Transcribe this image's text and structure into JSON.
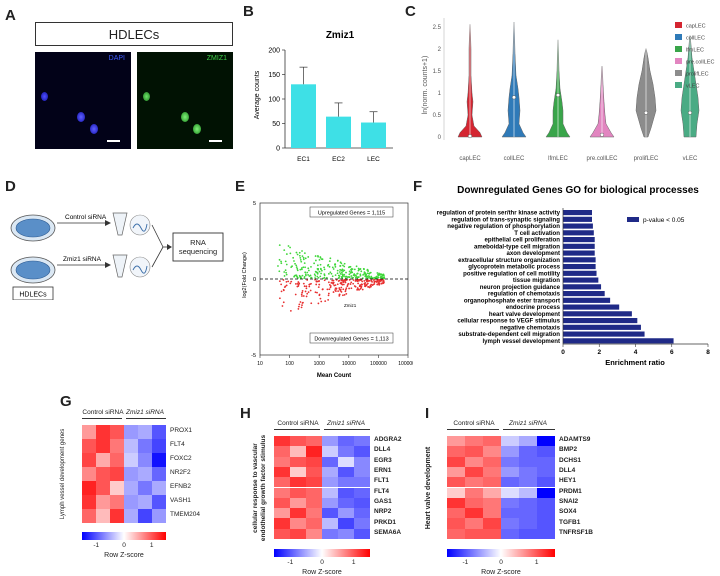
{
  "panels": {
    "A": "A",
    "B": "B",
    "C": "C",
    "D": "D",
    "E": "E",
    "F": "F",
    "G": "G",
    "H": "H",
    "I": "I"
  },
  "panelA": {
    "header": "HDLECs",
    "label_left": "DAPI",
    "label_right": "ZMIZ1"
  },
  "chart_data": [
    {
      "id": "B",
      "type": "bar",
      "title": "Zmiz1",
      "ylabel": "Average counts",
      "categories": [
        "EC1",
        "EC2",
        "LEC"
      ],
      "values": [
        130,
        64,
        52
      ],
      "errors": [
        35,
        28,
        22
      ],
      "ylim": [
        0,
        200
      ],
      "yticks": [
        "0",
        "50",
        "100",
        "150",
        "200"
      ],
      "color": "#3ee0e6"
    },
    {
      "id": "C",
      "type": "violin",
      "ylabel": "ln(norm. counts+1)",
      "categories": [
        "capLEC",
        "collLEC",
        "lfmLEC",
        "pre.collLEC",
        "prolifLEC",
        "vLEC"
      ],
      "yticks": [
        "0",
        "0.5",
        "1",
        "1.5",
        "2",
        "2.5"
      ],
      "ylim": [
        0,
        2.7
      ],
      "legend": [
        "capLEC",
        "collLEC",
        "lfmLEC",
        "pre.collLEC",
        "prolifLEC",
        "vLEC"
      ],
      "colors": [
        "#d42531",
        "#2f7ab8",
        "#39a54a",
        "#e285c0",
        "#8c8c8c",
        "#4aab84"
      ]
    },
    {
      "id": "E",
      "type": "scatter",
      "xlabel": "Mean Count",
      "ylabel": "log2(Fold Change)",
      "xticks": [
        "10",
        "100",
        "1000",
        "10000",
        "100000",
        "1000000"
      ],
      "yticks": [
        "5",
        "0",
        "-5"
      ],
      "up_label": "Upregulated Genes = 1,115",
      "down_label": "Downregulated Genes = 1,113",
      "point_label": "Zmiz1"
    },
    {
      "id": "F",
      "type": "bar",
      "orientation": "horizontal",
      "title": "Downregulated Genes GO for biological processes",
      "xlabel": "Enrichment ratio",
      "legend": "p-value < 0.05",
      "xticks": [
        "0",
        "2",
        "4",
        "6",
        "8"
      ],
      "xlim": [
        0,
        8
      ],
      "categories": [
        "regulation of protein ser/thr kinase activity",
        "regulation of trans-synaptic signaling",
        "negative regulation of phosphorylation",
        "T cell activation",
        "epithelial cell proliferation",
        "ameboidal-type cell migration",
        "axon development",
        "extracellular structure organization",
        "glycoprotein metabolic process",
        "positive regulation of cell motility",
        "tissue migration",
        "neuron projection guidance",
        "regulation of chemotaxis",
        "organophosphate ester transport",
        "endocrine process",
        "heart valve development",
        "cellular response to VEGF stimulus",
        "negative chemotaxis",
        "substrate-dependent cell migration",
        "lymph vessel development"
      ],
      "values": [
        1.6,
        1.6,
        1.65,
        1.7,
        1.75,
        1.75,
        1.75,
        1.8,
        1.8,
        1.85,
        1.95,
        2.1,
        2.3,
        2.6,
        3.1,
        3.8,
        4.1,
        4.3,
        4.5,
        6.1
      ],
      "color": "#1f2a87"
    }
  ],
  "panelD": {
    "control": "Control siRNA",
    "zmiz": "Zmiz1 siRNA",
    "box": "RNA sequencing",
    "cells": "HDLECs"
  },
  "heatmapG": {
    "group1": "Control siRNA",
    "group2": "Zmiz1 siRNA",
    "side_label": "Lymph vessel development genes",
    "genes": [
      "PROX1",
      "FLT4",
      "FOXC2",
      "NR2F2",
      "EFNB2",
      "VASH1",
      "TMEM204"
    ],
    "colorbar_title": "Row Z-score",
    "ticks": [
      "-1",
      "0",
      "1"
    ],
    "values": [
      [
        0.6,
        1.2,
        1.0,
        -0.6,
        -0.5,
        -1.0
      ],
      [
        1.0,
        1.2,
        0.8,
        -0.4,
        -0.8,
        -1.1
      ],
      [
        1.1,
        0.5,
        0.9,
        -0.3,
        -0.7,
        -1.4
      ],
      [
        0.7,
        1.0,
        1.1,
        -0.6,
        -0.5,
        -0.9
      ],
      [
        1.3,
        1.0,
        0.3,
        -0.5,
        -0.8,
        -0.5
      ],
      [
        1.2,
        0.6,
        0.8,
        -0.6,
        -0.5,
        -1.0
      ],
      [
        0.9,
        0.4,
        1.2,
        -0.5,
        -1.1,
        -0.6
      ]
    ]
  },
  "heatmapH": {
    "group1": "Control siRNA",
    "group2": "Zmiz1 siRNA",
    "side_label": "cellular response to vascular endothelial growth factor stimulus",
    "genes": [
      "ADGRA2",
      "DLL4",
      "EGR3",
      "ERN1",
      "FLT1",
      "FLT4",
      "GAS1",
      "NRP2",
      "PRKD1",
      "SEMA6A"
    ],
    "colorbar_title": "Row Z-score",
    "ticks": [
      "-1",
      "0",
      "1"
    ],
    "values": [
      [
        1.2,
        1.0,
        0.9,
        -0.6,
        -0.9,
        -0.8
      ],
      [
        0.9,
        0.4,
        1.3,
        -0.3,
        -0.8,
        -1.0
      ],
      [
        0.8,
        1.0,
        1.1,
        -0.9,
        -0.2,
        -0.7
      ],
      [
        1.2,
        0.3,
        1.0,
        -0.5,
        -1.0,
        -0.7
      ],
      [
        0.9,
        1.2,
        1.1,
        -0.6,
        -0.8,
        -0.8
      ],
      [
        0.8,
        1.0,
        0.9,
        -0.4,
        -1.0,
        -0.9
      ],
      [
        1.0,
        0.6,
        0.9,
        -0.6,
        -0.9,
        -1.0
      ],
      [
        0.6,
        1.2,
        0.8,
        -1.0,
        -0.6,
        -0.9
      ],
      [
        1.2,
        0.7,
        0.9,
        -0.4,
        -1.1,
        -0.8
      ],
      [
        1.0,
        1.1,
        0.7,
        -0.8,
        -0.7,
        -1.0
      ]
    ]
  },
  "heatmapI": {
    "group1": "Control siRNA",
    "group2": "Zmiz1 siRNA",
    "side_label": "Heart valve development",
    "genes": [
      "ADAMTS9",
      "BMP2",
      "DCHS1",
      "DLL4",
      "HEY1",
      "PRDM1",
      "SNAI2",
      "SOX4",
      "TGFB1",
      "TNFRSF1B"
    ],
    "colorbar_title": "Row Z-score",
    "ticks": [
      "-1",
      "0",
      "1"
    ],
    "values": [
      [
        0.6,
        0.8,
        0.9,
        -0.3,
        -0.5,
        -1.6
      ],
      [
        0.9,
        1.0,
        0.7,
        -0.6,
        -0.9,
        -1.0
      ],
      [
        1.1,
        0.7,
        0.9,
        -0.8,
        -0.9,
        -0.9
      ],
      [
        0.6,
        1.1,
        0.8,
        -0.6,
        -0.8,
        -0.9
      ],
      [
        1.0,
        0.8,
        0.9,
        -0.9,
        -0.8,
        -1.0
      ],
      [
        0.3,
        0.8,
        0.5,
        -0.2,
        -0.4,
        -1.5
      ],
      [
        1.2,
        0.9,
        0.8,
        -0.8,
        -0.9,
        -1.0
      ],
      [
        0.9,
        1.2,
        0.8,
        -0.9,
        -0.9,
        -1.0
      ],
      [
        1.0,
        0.8,
        1.1,
        -0.8,
        -0.9,
        -1.0
      ],
      [
        0.9,
        1.0,
        1.0,
        -0.9,
        -1.0,
        -1.0
      ]
    ]
  }
}
